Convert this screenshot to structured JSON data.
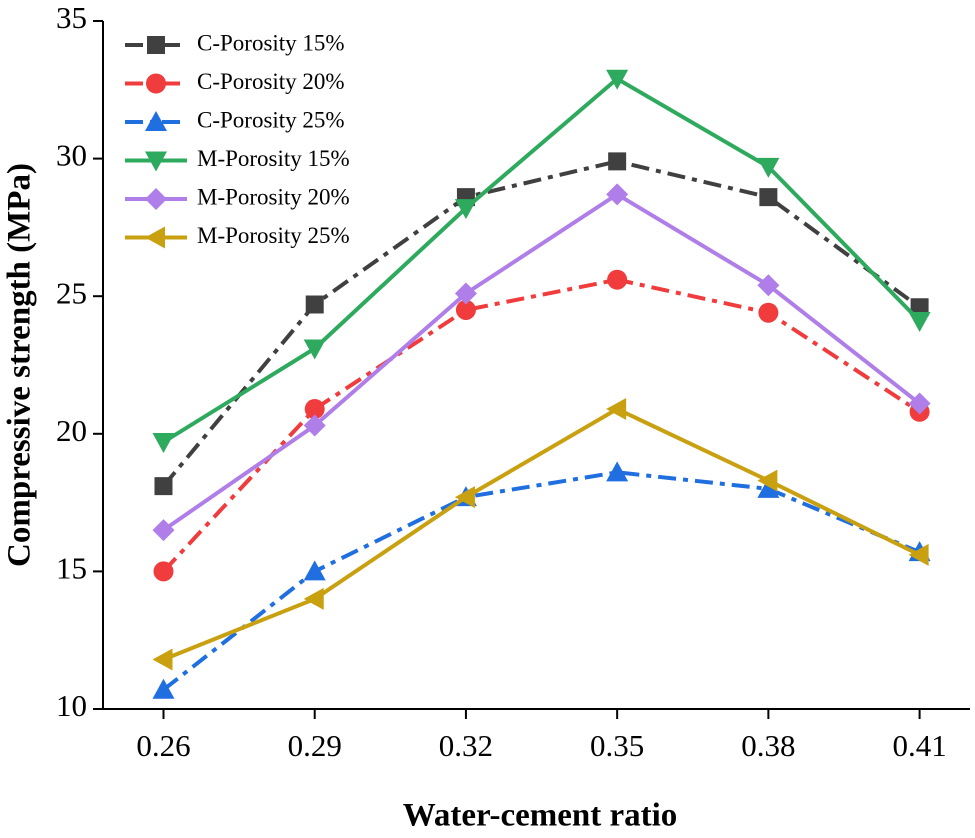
{
  "chart_data": {
    "type": "line",
    "x_label": "Water-cement ratio",
    "y_label": "Compressive strength (MPa)",
    "x": [
      0.26,
      0.29,
      0.32,
      0.35,
      0.38,
      0.41
    ],
    "xlim": [
      0.248,
      0.42
    ],
    "xticks": [
      0.26,
      0.29,
      0.32,
      0.35,
      0.38,
      0.41
    ],
    "ylim": [
      10,
      35
    ],
    "yticks": [
      10,
      15,
      20,
      25,
      30,
      35
    ],
    "legend": "upper left",
    "series": [
      {
        "name": "C-Porosity 15%",
        "color": "#404040",
        "marker": "square",
        "linestyle": "dashdot",
        "values": [
          18.1,
          24.7,
          28.6,
          29.9,
          28.6,
          24.6
        ]
      },
      {
        "name": "C-Porosity 20%",
        "color": "#f03c3c",
        "marker": "circle",
        "linestyle": "dashdot",
        "values": [
          15.0,
          20.9,
          24.5,
          25.6,
          24.4,
          20.8
        ]
      },
      {
        "name": "C-Porosity 25%",
        "color": "#1f6fe0",
        "marker": "triangle-up",
        "linestyle": "dashdot",
        "values": [
          10.7,
          15.0,
          17.7,
          18.6,
          18.0,
          15.7
        ]
      },
      {
        "name": "M-Porosity 15%",
        "color": "#2eaa5e",
        "marker": "triangle-down",
        "linestyle": "solid",
        "values": [
          19.7,
          23.1,
          28.2,
          32.9,
          29.7,
          24.1
        ]
      },
      {
        "name": "M-Porosity 20%",
        "color": "#b07ee8",
        "marker": "diamond",
        "linestyle": "solid",
        "values": [
          16.5,
          20.3,
          25.1,
          28.7,
          25.4,
          21.1
        ]
      },
      {
        "name": "M-Porosity 25%",
        "color": "#c9a010",
        "marker": "triangle-left",
        "linestyle": "solid",
        "values": [
          11.8,
          14.0,
          17.7,
          20.9,
          18.3,
          15.6
        ]
      }
    ]
  }
}
